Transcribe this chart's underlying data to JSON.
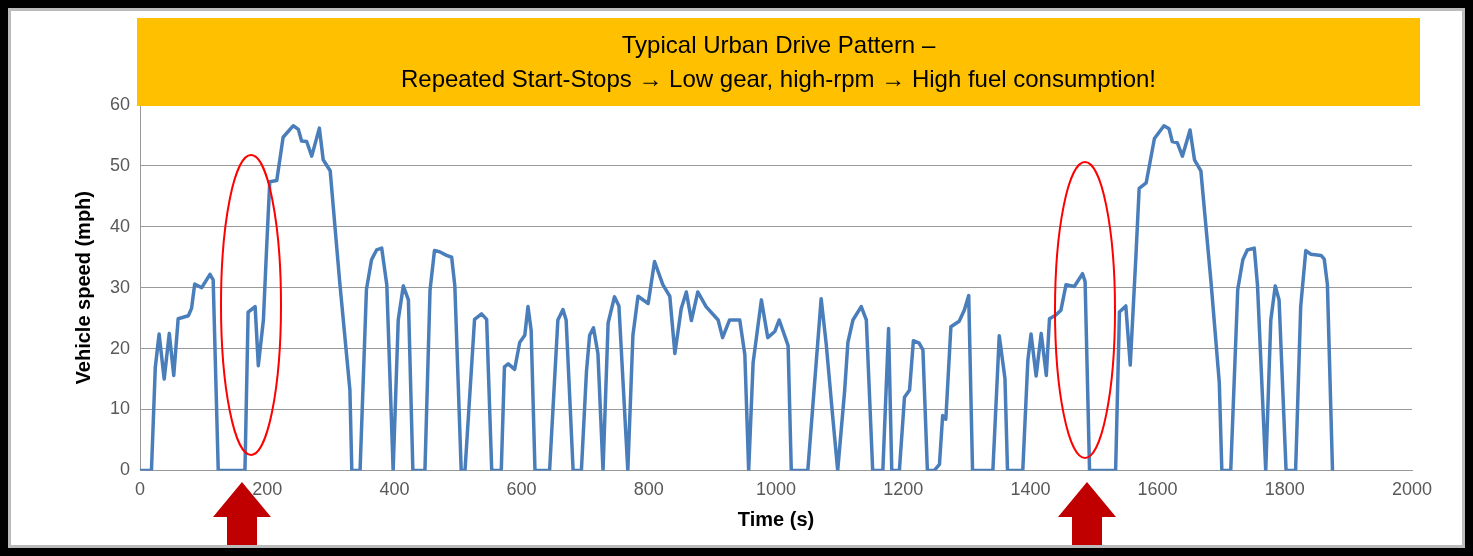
{
  "chart_data": {
    "type": "line",
    "title": "Typical Urban Drive Pattern –\nRepeated Start-Stops → Low gear, high-rpm → High fuel consumption!",
    "xlabel": "Time (s)",
    "ylabel": "Vehicle speed (mph)",
    "xlim": [
      0,
      2000
    ],
    "xticks": [
      0,
      200,
      400,
      600,
      800,
      1000,
      1200,
      1400,
      1600,
      1800,
      2000
    ],
    "ylim": [
      0,
      60
    ],
    "yticks": [
      0,
      10,
      20,
      30,
      40,
      50,
      60
    ],
    "grid": "y",
    "legend": false,
    "marker": "none",
    "line_style": "solid",
    "series": [
      {
        "color": "#4a7ebb",
        "x": [
          0,
          18,
          24,
          30,
          38,
          46,
          53,
          60,
          76,
          81,
          86,
          97,
          110,
          115,
          123,
          165,
          170,
          181,
          186,
          194,
          199,
          204,
          215,
          225,
          241,
          249,
          254,
          262,
          270,
          282,
          288,
          299,
          314,
          330,
          333,
          346,
          356,
          364,
          372,
          380,
          388,
          398,
          406,
          414,
          422,
          429,
          448,
          456,
          463,
          471,
          482,
          490,
          495,
          505,
          511,
          526,
          537,
          545,
          553,
          568,
          573,
          579,
          589,
          597,
          605,
          610,
          615,
          621,
          644,
          657,
          665,
          670,
          681,
          694,
          702,
          707,
          713,
          720,
          728,
          736,
          746,
          753,
          767,
          775,
          783,
          799,
          809,
          822,
          833,
          841,
          851,
          859,
          867,
          877,
          890,
          909,
          916,
          927,
          943,
          951,
          957,
          964,
          977,
          987,
          998,
          1005,
          1019,
          1024,
          1050,
          1071,
          1079,
          1089,
          1097,
          1108,
          1113,
          1121,
          1134,
          1142,
          1152,
          1168,
          1177,
          1182,
          1194,
          1202,
          1210,
          1216,
          1225,
          1231,
          1238,
          1249,
          1257,
          1262,
          1267,
          1275,
          1288,
          1296,
          1303,
          1309,
          1341,
          1351,
          1360,
          1364,
          1388,
          1396,
          1401,
          1409,
          1417,
          1425,
          1430,
          1440,
          1448,
          1456,
          1469,
          1482,
          1486,
          1493,
          1534,
          1540,
          1550,
          1557,
          1566,
          1571,
          1582,
          1595,
          1610,
          1618,
          1623,
          1631,
          1639,
          1651,
          1658,
          1668,
          1684,
          1697,
          1701,
          1715,
          1726,
          1734,
          1741,
          1752,
          1757,
          1770,
          1778,
          1785,
          1791,
          1802,
          1817,
          1825,
          1833,
          1841,
          1857,
          1862,
          1867,
          1875
        ],
        "values": [
          0,
          0,
          16.9,
          22.4,
          15,
          22.5,
          15.6,
          24.9,
          25.4,
          26.6,
          30.6,
          30,
          32.2,
          31.3,
          0,
          0,
          26,
          26.9,
          17.2,
          24.7,
          36.4,
          47.4,
          47.6,
          54.7,
          56.6,
          56,
          54.1,
          54,
          51.6,
          56.2,
          51,
          49.2,
          30.9,
          13.2,
          0,
          0,
          29.7,
          34.6,
          36.2,
          36.5,
          30.5,
          0,
          24.7,
          30.3,
          28,
          0,
          0,
          29.6,
          36.1,
          35.9,
          35.3,
          35,
          30.3,
          0,
          0,
          24.8,
          25.7,
          24.8,
          0,
          0,
          17,
          17.5,
          16.6,
          21,
          22.2,
          26.9,
          23,
          0,
          0,
          24.7,
          26.4,
          24.7,
          0,
          0,
          16.3,
          22.2,
          23.4,
          19.2,
          0,
          24.2,
          28.5,
          27,
          0,
          22.2,
          28.6,
          27.4,
          34.3,
          30.5,
          28.6,
          19.2,
          26.6,
          29.3,
          24.6,
          29.3,
          26.9,
          24.7,
          21.8,
          24.7,
          24.7,
          19,
          0,
          17.7,
          28,
          21.8,
          22.8,
          24.7,
          20.5,
          0,
          0,
          28.2,
          20.7,
          9,
          0,
          13.2,
          21,
          24.7,
          26.9,
          24.7,
          0,
          0,
          23.3,
          0,
          0,
          12,
          13.2,
          21.3,
          20.9,
          19.8,
          0,
          0,
          1,
          9,
          8.4,
          23.6,
          24.5,
          26.3,
          28.7,
          0,
          0,
          22.1,
          15.1,
          0,
          0,
          18.1,
          22.4,
          15.5,
          22.5,
          15.6,
          24.9,
          25.5,
          26.3,
          30.5,
          30.2,
          32.3,
          31,
          0,
          0,
          26,
          27,
          17.3,
          35.4,
          46.3,
          47.2,
          54.5,
          56.6,
          56.1,
          54,
          53.8,
          51.6,
          55.9,
          51,
          49.2,
          30.9,
          14.4,
          0,
          0,
          29.7,
          34.6,
          36.2,
          36.5,
          30.5,
          0,
          24.7,
          30.3,
          28,
          0,
          0,
          26.9,
          36.1,
          35.5,
          35.3,
          34.7,
          30.5,
          0
        ]
      }
    ]
  }
}
